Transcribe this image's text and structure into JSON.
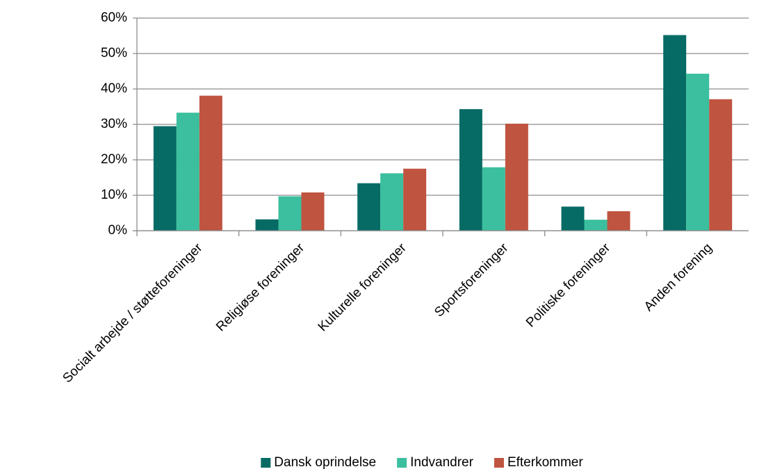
{
  "chart_data": {
    "type": "bar",
    "categories": [
      "Socialt arbejde / støtteforeninger",
      "Religiøse foreninger",
      "Kulturelle foreninger",
      "Sportsforeninger",
      "Politiske foreninger",
      "Anden forening"
    ],
    "series": [
      {
        "name": "Dansk oprindelse",
        "color": "#066b65",
        "values": [
          29.5,
          3.2,
          13.4,
          34.3,
          6.8,
          55.2
        ]
      },
      {
        "name": "Indvandrer",
        "color": "#3bbf9e",
        "values": [
          33.3,
          9.7,
          16.2,
          17.9,
          3.1,
          44.3
        ]
      },
      {
        "name": "Efterkommer",
        "color": "#bf5440",
        "values": [
          38.1,
          10.8,
          17.5,
          30.2,
          5.5,
          37.1
        ]
      }
    ],
    "ylim": [
      0,
      60
    ],
    "yticks": [
      {
        "value": 0,
        "label": "0%"
      },
      {
        "value": 10,
        "label": "10%"
      },
      {
        "value": 20,
        "label": "20%"
      },
      {
        "value": 30,
        "label": "30%"
      },
      {
        "value": 40,
        "label": "40%"
      },
      {
        "value": 50,
        "label": "50%"
      },
      {
        "value": 60,
        "label": "60%"
      }
    ],
    "grid": true,
    "legend": "bottom"
  }
}
